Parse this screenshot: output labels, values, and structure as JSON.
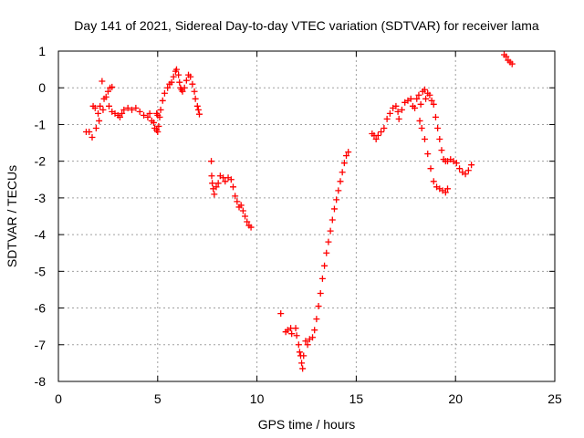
{
  "chart_data": {
    "type": "scatter",
    "title": "Day 141 of 2021, Sidereal Day-to-day VTEC variation (SDTVAR) for receiver lama",
    "xlabel": "GPS time / hours",
    "ylabel": "SDTVAR / TECUs",
    "xlim": [
      0,
      25
    ],
    "ylim": [
      -8,
      1
    ],
    "xticks": [
      0,
      5,
      10,
      15,
      20,
      25
    ],
    "yticks": [
      -8,
      -7,
      -6,
      -5,
      -4,
      -3,
      -2,
      -1,
      0,
      1
    ],
    "grid": true,
    "marker": "plus",
    "color": "#ff0000",
    "series": [
      {
        "points": [
          [
            1.4,
            -1.2
          ],
          [
            1.55,
            -1.2
          ],
          [
            1.7,
            -1.35
          ],
          [
            1.75,
            -0.5
          ],
          [
            1.85,
            -0.55
          ],
          [
            1.9,
            -1.1
          ],
          [
            2.0,
            -0.7
          ],
          [
            2.05,
            -0.9
          ],
          [
            2.1,
            -0.5
          ],
          [
            2.2,
            0.18
          ],
          [
            2.25,
            -0.6
          ],
          [
            2.3,
            -0.3
          ],
          [
            2.4,
            -0.25
          ],
          [
            2.5,
            -0.1
          ],
          [
            2.6,
            0.0
          ],
          [
            2.7,
            0.02
          ],
          [
            2.55,
            -0.5
          ],
          [
            2.7,
            -0.65
          ],
          [
            2.85,
            -0.7
          ],
          [
            3.0,
            -0.75
          ],
          [
            3.1,
            -0.8
          ],
          [
            3.2,
            -0.7
          ],
          [
            3.3,
            -0.6
          ],
          [
            3.5,
            -0.55
          ],
          [
            3.7,
            -0.6
          ],
          [
            3.9,
            -0.55
          ],
          [
            4.1,
            -0.65
          ],
          [
            4.3,
            -0.75
          ],
          [
            4.5,
            -0.8
          ],
          [
            4.6,
            -0.7
          ],
          [
            4.7,
            -0.9
          ],
          [
            4.8,
            -0.95
          ],
          [
            4.85,
            -1.1
          ],
          [
            4.95,
            -1.15
          ],
          [
            5.0,
            -1.2
          ],
          [
            5.05,
            -1.05
          ],
          [
            4.95,
            -0.7
          ],
          [
            5.0,
            -0.75
          ],
          [
            5.1,
            -0.8
          ],
          [
            5.15,
            -0.6
          ],
          [
            5.25,
            -0.35
          ],
          [
            5.35,
            -0.15
          ],
          [
            5.5,
            0.0
          ],
          [
            5.6,
            0.1
          ],
          [
            5.7,
            0.15
          ],
          [
            5.8,
            0.3
          ],
          [
            5.9,
            0.45
          ],
          [
            5.95,
            0.5
          ],
          [
            6.05,
            0.35
          ],
          [
            6.1,
            0.15
          ],
          [
            6.15,
            0.0
          ],
          [
            6.2,
            -0.05
          ],
          [
            6.25,
            -0.1
          ],
          [
            6.35,
            0.0
          ],
          [
            6.45,
            0.2
          ],
          [
            6.55,
            0.35
          ],
          [
            6.65,
            0.3
          ],
          [
            6.75,
            0.1
          ],
          [
            6.85,
            -0.1
          ],
          [
            6.9,
            -0.3
          ],
          [
            7.0,
            -0.5
          ],
          [
            7.05,
            -0.6
          ],
          [
            7.1,
            -0.72
          ],
          [
            7.7,
            -2.0
          ],
          [
            7.72,
            -2.4
          ],
          [
            7.75,
            -2.6
          ],
          [
            7.8,
            -2.75
          ],
          [
            7.85,
            -2.9
          ],
          [
            7.95,
            -2.7
          ],
          [
            8.05,
            -2.6
          ],
          [
            8.15,
            -2.4
          ],
          [
            8.3,
            -2.45
          ],
          [
            8.4,
            -2.55
          ],
          [
            8.55,
            -2.45
          ],
          [
            8.7,
            -2.5
          ],
          [
            8.8,
            -2.7
          ],
          [
            8.9,
            -2.95
          ],
          [
            9.0,
            -3.1
          ],
          [
            9.1,
            -3.25
          ],
          [
            9.2,
            -3.2
          ],
          [
            9.3,
            -3.35
          ],
          [
            9.4,
            -3.5
          ],
          [
            9.5,
            -3.65
          ],
          [
            9.6,
            -3.75
          ],
          [
            9.7,
            -3.8
          ],
          [
            11.2,
            -6.15
          ],
          [
            11.45,
            -6.65
          ],
          [
            11.55,
            -6.6
          ],
          [
            11.7,
            -6.55
          ],
          [
            11.75,
            -6.7
          ],
          [
            11.95,
            -6.55
          ],
          [
            12.0,
            -6.75
          ],
          [
            12.1,
            -7.0
          ],
          [
            12.15,
            -7.2
          ],
          [
            12.2,
            -7.3
          ],
          [
            12.25,
            -7.5
          ],
          [
            12.3,
            -7.65
          ],
          [
            12.35,
            -7.3
          ],
          [
            12.45,
            -6.9
          ],
          [
            12.55,
            -7.0
          ],
          [
            12.65,
            -6.85
          ],
          [
            12.8,
            -6.8
          ],
          [
            12.9,
            -6.6
          ],
          [
            13.0,
            -6.3
          ],
          [
            13.1,
            -5.95
          ],
          [
            13.2,
            -5.6
          ],
          [
            13.3,
            -5.2
          ],
          [
            13.4,
            -4.85
          ],
          [
            13.5,
            -4.5
          ],
          [
            13.6,
            -4.2
          ],
          [
            13.7,
            -3.9
          ],
          [
            13.8,
            -3.6
          ],
          [
            13.9,
            -3.3
          ],
          [
            14.0,
            -3.05
          ],
          [
            14.1,
            -2.8
          ],
          [
            14.2,
            -2.55
          ],
          [
            14.3,
            -2.3
          ],
          [
            14.4,
            -2.05
          ],
          [
            14.5,
            -1.85
          ],
          [
            14.6,
            -1.75
          ],
          [
            15.8,
            -1.25
          ],
          [
            15.9,
            -1.3
          ],
          [
            16.0,
            -1.4
          ],
          [
            16.1,
            -1.3
          ],
          [
            16.25,
            -1.2
          ],
          [
            16.4,
            -1.1
          ],
          [
            16.55,
            -0.85
          ],
          [
            16.7,
            -0.7
          ],
          [
            16.85,
            -0.55
          ],
          [
            17.0,
            -0.5
          ],
          [
            17.1,
            -0.65
          ],
          [
            17.15,
            -0.85
          ],
          [
            17.3,
            -0.6
          ],
          [
            17.45,
            -0.4
          ],
          [
            17.6,
            -0.35
          ],
          [
            17.75,
            -0.3
          ],
          [
            17.85,
            -0.5
          ],
          [
            17.95,
            -0.55
          ],
          [
            18.05,
            -0.3
          ],
          [
            18.15,
            -0.2
          ],
          [
            18.25,
            -0.45
          ],
          [
            18.35,
            -0.1
          ],
          [
            18.45,
            -0.05
          ],
          [
            18.5,
            -0.3
          ],
          [
            18.6,
            -0.15
          ],
          [
            18.7,
            -0.2
          ],
          [
            18.8,
            -0.35
          ],
          [
            18.9,
            -0.45
          ],
          [
            19.0,
            -0.8
          ],
          [
            19.1,
            -1.1
          ],
          [
            19.2,
            -1.4
          ],
          [
            19.3,
            -1.7
          ],
          [
            19.4,
            -1.95
          ],
          [
            19.5,
            -2.0
          ],
          [
            19.6,
            -2.0
          ],
          [
            19.75,
            -1.95
          ],
          [
            19.9,
            -2.0
          ],
          [
            20.05,
            -2.05
          ],
          [
            20.2,
            -2.2
          ],
          [
            20.35,
            -2.3
          ],
          [
            20.5,
            -2.35
          ],
          [
            20.65,
            -2.25
          ],
          [
            20.8,
            -2.1
          ],
          [
            18.2,
            -0.9
          ],
          [
            18.3,
            -1.1
          ],
          [
            18.45,
            -1.4
          ],
          [
            18.6,
            -1.8
          ],
          [
            18.75,
            -2.2
          ],
          [
            18.9,
            -2.55
          ],
          [
            19.05,
            -2.7
          ],
          [
            19.2,
            -2.75
          ],
          [
            19.35,
            -2.8
          ],
          [
            19.5,
            -2.85
          ],
          [
            19.6,
            -2.75
          ],
          [
            22.45,
            0.9
          ],
          [
            22.55,
            0.85
          ],
          [
            22.65,
            0.75
          ],
          [
            22.75,
            0.7
          ],
          [
            22.85,
            0.65
          ]
        ]
      }
    ]
  }
}
